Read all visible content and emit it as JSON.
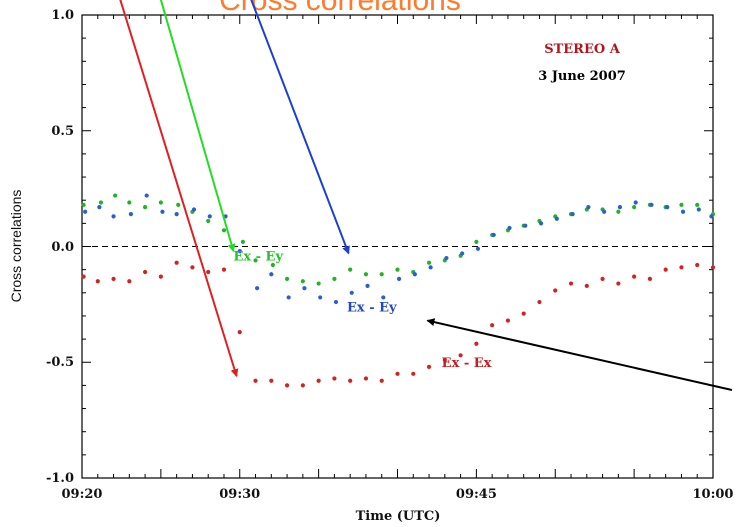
{
  "chart_data": {
    "type": "scatter",
    "title": "Cross correlations",
    "xlabel": "Time (UTC)",
    "ylabel": "Cross correlations",
    "xlim": [
      0,
      40
    ],
    "ylim": [
      -1.0,
      1.0
    ],
    "xticks": [
      {
        "value": 0,
        "label": "09:20"
      },
      {
        "value": 10,
        "label": "09:30"
      },
      {
        "value": 25,
        "label": "09:45"
      },
      {
        "value": 40,
        "label": "10:00"
      }
    ],
    "yticks": [
      {
        "value": 1.0,
        "label": "1.0"
      },
      {
        "value": 0.5,
        "label": "0.5"
      },
      {
        "value": 0.0,
        "label": "0.0"
      },
      {
        "value": -0.5,
        "label": "-0.5"
      },
      {
        "value": -1.0,
        "label": "-1.0"
      }
    ],
    "zero_line": true,
    "annotations": {
      "spacecraft": "STEREO A",
      "date": "3 June 2007",
      "label_green": {
        "text": "Ex - Ey",
        "x": 9.6,
        "y": -0.06
      },
      "label_blue": {
        "text": "Ex - Ey",
        "x": 16.8,
        "y": -0.28
      },
      "label_red": {
        "text": "Ex - Ex",
        "x": 22.8,
        "y": -0.52
      }
    },
    "series": [
      {
        "color": "#24b324",
        "x": [
          0.1,
          1.2,
          2.1,
          3.0,
          4.0,
          5.0,
          6.1,
          7.0,
          8.0,
          9.0,
          10.2,
          11.0,
          12.1,
          13.0,
          14.0,
          15.0,
          16.0,
          17.0,
          18.0,
          19.0,
          20.0,
          21.0,
          22.0,
          23.0,
          24.0,
          25.0,
          26.0,
          27.0,
          28.0,
          29.0,
          30.0,
          31.0,
          32.0,
          33.0,
          34.0,
          35.0,
          36.0,
          37.0,
          38.0,
          39.0,
          40.0
        ],
        "y": [
          0.18,
          0.19,
          0.22,
          0.19,
          0.17,
          0.19,
          0.18,
          0.15,
          0.11,
          0.07,
          0.02,
          -0.06,
          -0.08,
          -0.14,
          -0.15,
          -0.16,
          -0.14,
          -0.1,
          -0.12,
          -0.12,
          -0.1,
          -0.11,
          -0.07,
          -0.06,
          -0.04,
          0.02,
          0.05,
          0.07,
          0.09,
          0.11,
          0.13,
          0.14,
          0.16,
          0.16,
          0.15,
          0.17,
          0.18,
          0.17,
          0.18,
          0.18,
          0.14
        ]
      },
      {
        "color": "#2a5fd1",
        "x": [
          0.2,
          1.1,
          2.0,
          3.1,
          4.1,
          5.1,
          6.0,
          7.1,
          8.1,
          9.1,
          10.0,
          11.1,
          12.0,
          13.1,
          14.1,
          15.1,
          16.1,
          17.1,
          18.1,
          19.1,
          20.1,
          21.1,
          22.1,
          23.1,
          24.1,
          25.1,
          26.1,
          27.1,
          28.1,
          29.1,
          30.1,
          31.1,
          32.1,
          33.1,
          34.1,
          35.1,
          36.1,
          37.1,
          38.1,
          39.1,
          39.9
        ],
        "y": [
          0.15,
          0.17,
          0.13,
          0.14,
          0.22,
          0.15,
          0.14,
          0.16,
          0.13,
          0.13,
          -0.02,
          -0.18,
          -0.12,
          -0.22,
          -0.18,
          -0.22,
          -0.24,
          -0.2,
          -0.17,
          -0.22,
          -0.14,
          -0.12,
          -0.09,
          -0.05,
          -0.03,
          -0.01,
          0.05,
          0.08,
          0.09,
          0.1,
          0.12,
          0.14,
          0.17,
          0.15,
          0.17,
          0.19,
          0.18,
          0.17,
          0.15,
          0.16,
          0.13
        ]
      },
      {
        "color": "#d32222",
        "x": [
          0.1,
          1.0,
          2.0,
          3.0,
          4.0,
          5.0,
          6.0,
          7.0,
          8.0,
          9.0,
          10.0,
          11.0,
          12.0,
          13.0,
          14.0,
          15.0,
          16.0,
          17.0,
          18.0,
          19.0,
          20.0,
          21.0,
          22.0,
          23.0,
          24.0,
          25.0,
          26.0,
          27.0,
          28.0,
          29.0,
          30.0,
          31.0,
          32.0,
          33.0,
          34.0,
          35.0,
          36.0,
          37.0,
          38.0,
          39.0,
          40.0
        ],
        "y": [
          -0.13,
          -0.15,
          -0.14,
          -0.15,
          -0.11,
          -0.13,
          -0.07,
          -0.09,
          -0.11,
          -0.1,
          -0.37,
          -0.58,
          -0.58,
          -0.6,
          -0.6,
          -0.58,
          -0.57,
          -0.58,
          -0.57,
          -0.58,
          -0.55,
          -0.55,
          -0.52,
          -0.49,
          -0.47,
          -0.42,
          -0.34,
          -0.32,
          -0.29,
          -0.24,
          -0.19,
          -0.16,
          -0.17,
          -0.14,
          -0.16,
          -0.13,
          -0.14,
          -0.1,
          -0.09,
          -0.08,
          -0.09
        ]
      }
    ],
    "arrows": [
      {
        "color": "#e02020",
        "from": [
          2.0,
          1.16
        ],
        "to": [
          9.8,
          -0.56
        ]
      },
      {
        "color": "#22dd22",
        "from": [
          4.6,
          1.16
        ],
        "to": [
          9.6,
          -0.02
        ]
      },
      {
        "color": "#1a3fd8",
        "from": [
          10.2,
          1.16
        ],
        "to": [
          16.9,
          -0.03
        ]
      },
      {
        "color": "#000000",
        "from": [
          41.2,
          -0.62
        ],
        "to": [
          21.9,
          -0.32
        ]
      }
    ]
  }
}
